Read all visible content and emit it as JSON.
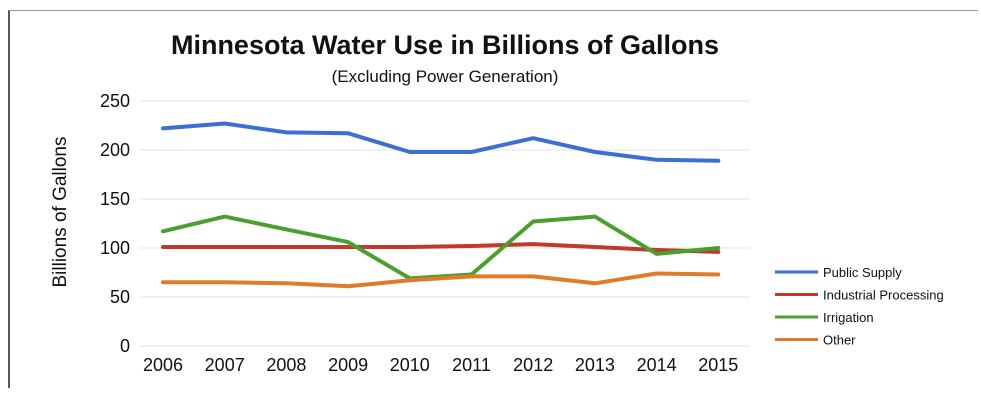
{
  "chart_data": {
    "type": "line",
    "title": "Minnesota Water Use in Billions of Gallons",
    "subtitle": "(Excluding Power Generation)",
    "ylabel": "Billions of Gallons",
    "xlabel": "",
    "ylim": [
      0,
      250
    ],
    "yticks": [
      0,
      50,
      100,
      150,
      200,
      250
    ],
    "grid": true,
    "legend_position": "right",
    "categories": [
      "2006",
      "2007",
      "2008",
      "2009",
      "2010",
      "2011",
      "2012",
      "2013",
      "2014",
      "2015"
    ],
    "series": [
      {
        "name": "Public Supply",
        "color": "#3b6fd1",
        "values": [
          222,
          227,
          218,
          217,
          198,
          198,
          212,
          198,
          190,
          189
        ]
      },
      {
        "name": "Industrial Processing",
        "color": "#c0392b",
        "values": [
          101,
          101,
          101,
          101,
          101,
          102,
          104,
          101,
          98,
          96
        ]
      },
      {
        "name": "Irrigation",
        "color": "#4aa02c",
        "values": [
          117,
          132,
          119,
          106,
          69,
          73,
          127,
          132,
          94,
          100
        ]
      },
      {
        "name": "Other",
        "color": "#e07b2a",
        "values": [
          65,
          65,
          64,
          61,
          67,
          71,
          71,
          64,
          74,
          73
        ]
      }
    ]
  }
}
